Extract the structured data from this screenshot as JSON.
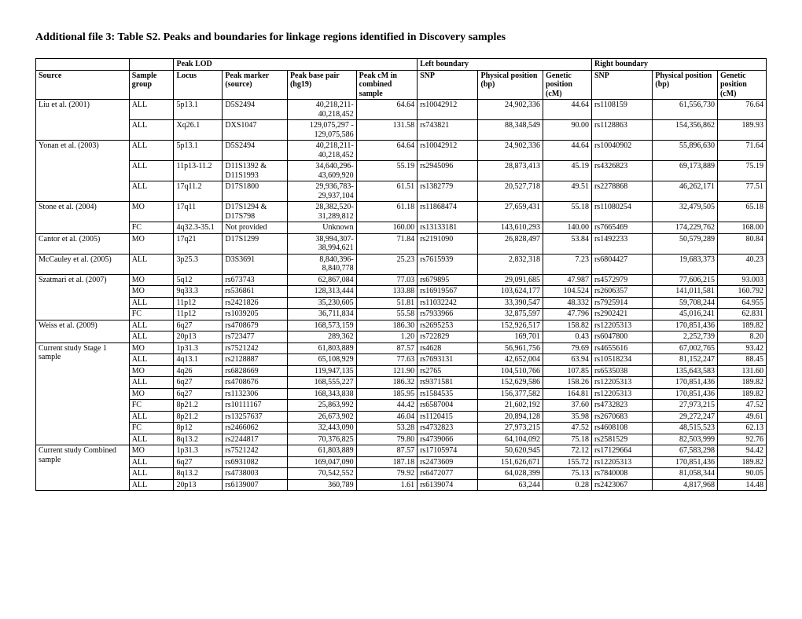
{
  "title": "Additional file 3: Table S2. Peaks and boundaries for linkage regions identified in Discovery samples",
  "group_headers": {
    "peak_lod": "Peak LOD",
    "left": "Left boundary",
    "right": "Right boundary"
  },
  "headers": {
    "source": "Source",
    "sample": "Sample group",
    "locus": "Locus",
    "marker": "Peak marker (source)",
    "basepair": "Peak base pair (hg19)",
    "cm": "Peak cM in combined sample",
    "l_snp": "SNP",
    "l_phys": "Physical position (bp)",
    "l_gen": "Genetic position (cM)",
    "r_snp": "SNP",
    "r_phys": "Physical position (bp)",
    "r_gen": "Genetic position (cM)"
  },
  "rows": [
    {
      "source": "Liu et al. (2001)",
      "sample": "ALL",
      "locus": "5p13.1",
      "marker": "D5S2494",
      "basepair": "40,218,211-40,218,452",
      "cm": "64.64",
      "l_snp": "rs10042912",
      "l_phys": "24,902,336",
      "l_gen": "44.64",
      "r_snp": "rs1108159",
      "r_phys": "61,556,730",
      "r_gen": "76.64"
    },
    {
      "source": "",
      "sample": "ALL",
      "locus": "Xq26.1",
      "marker": "DXS1047",
      "basepair": "129,075,297 - 129,075,586",
      "cm": "131.58",
      "l_snp": "rs743821",
      "l_phys": "88,348,549",
      "l_gen": "90.00",
      "r_snp": "rs1128863",
      "r_phys": "154,356,862",
      "r_gen": "189.93"
    },
    {
      "source": "Yonan et al. (2003)",
      "sample": "ALL",
      "locus": "5p13.1",
      "marker": "D5S2494",
      "basepair": "40,218,211-40,218,452",
      "cm": "64.64",
      "l_snp": "rs10042912",
      "l_phys": "24,902,336",
      "l_gen": "44.64",
      "r_snp": "rs10040902",
      "r_phys": "55,896,630",
      "r_gen": "71.64"
    },
    {
      "source": "",
      "sample": "ALL",
      "locus": "11p13-11.2",
      "marker": "D11S1392 & D11S1993",
      "basepair": "34,640,296-43,609,920",
      "cm": "55.19",
      "l_snp": "rs2945096",
      "l_phys": "28,873,413",
      "l_gen": "45.19",
      "r_snp": "rs4326823",
      "r_phys": "69,173,889",
      "r_gen": "75.19"
    },
    {
      "source": "",
      "sample": "ALL",
      "locus": "17q11.2",
      "marker": "D17S1800",
      "basepair": "29,936,783-29,937,104",
      "cm": "61.51",
      "l_snp": "rs1382779",
      "l_phys": "20,527,718",
      "l_gen": "49.51",
      "r_snp": "rs2278868",
      "r_phys": "46,262,171",
      "r_gen": "77.51"
    },
    {
      "source": "Stone et al. (2004)",
      "sample": "MO",
      "locus": "17q11",
      "marker": "D17S1294 & D17S798",
      "basepair": "28,382,520-31,289,812",
      "cm": "61.18",
      "l_snp": "rs11868474",
      "l_phys": "27,659,431",
      "l_gen": "55.18",
      "r_snp": "rs11080254",
      "r_phys": "32,479,505",
      "r_gen": "65.18"
    },
    {
      "source": "",
      "sample": "FC",
      "locus": "4q32.3-35.1",
      "marker": "Not provided",
      "basepair": "Unknown",
      "cm": "160.00",
      "l_snp": "rs13133181",
      "l_phys": "143,610,293",
      "l_gen": "140.00",
      "r_snp": "rs7665469",
      "r_phys": "174,229,762",
      "r_gen": "168.00"
    },
    {
      "source": "Cantor et al. (2005)",
      "sample": "MO",
      "locus": "17q21",
      "marker": "D17S1299",
      "basepair": "38,994,307-38,994,621",
      "cm": "71.84",
      "l_snp": "rs2191090",
      "l_phys": "26,828,497",
      "l_gen": "53.84",
      "r_snp": "rs1492233",
      "r_phys": "50,579,289",
      "r_gen": "80.84"
    },
    {
      "source": "McCauley et al. (2005)",
      "sample": "ALL",
      "locus": "3p25.3",
      "marker": "D3S3691",
      "basepair": "8,840,396-8,840,778",
      "cm": "25.23",
      "l_snp": "rs7615939",
      "l_phys": "2,832,318",
      "l_gen": "7.23",
      "r_snp": "rs6804427",
      "r_phys": "19,683,373",
      "r_gen": "40.23"
    },
    {
      "source": "Szatmari et al. (2007)",
      "sample": "MO",
      "locus": "5q12",
      "marker": "rs673743",
      "basepair": "62,867,084",
      "cm": "77.03",
      "l_snp": "rs679895",
      "l_phys": "29,091,685",
      "l_gen": "47.987",
      "r_snp": "rs4572979",
      "r_phys": "77,606,215",
      "r_gen": "93.003"
    },
    {
      "source": "",
      "sample": "MO",
      "locus": "9q33.3",
      "marker": "rs536861",
      "basepair": "128,313,444",
      "cm": "133.88",
      "l_snp": "rs16919567",
      "l_phys": "103,624,177",
      "l_gen": "104.524",
      "r_snp": "rs2606357",
      "r_phys": "141,011,581",
      "r_gen": "160.792"
    },
    {
      "source": "",
      "sample": "ALL",
      "locus": "11p12",
      "marker": "rs2421826",
      "basepair": "35,230,605",
      "cm": "51.81",
      "l_snp": "rs11032242",
      "l_phys": "33,390,547",
      "l_gen": "48.332",
      "r_snp": "rs7925914",
      "r_phys": "59,708,244",
      "r_gen": "64.955"
    },
    {
      "source": "",
      "sample": "FC",
      "locus": "11p12",
      "marker": "rs1039205",
      "basepair": "36,711,834",
      "cm": "55.58",
      "l_snp": "rs7933966",
      "l_phys": "32,875,597",
      "l_gen": "47.796",
      "r_snp": "rs2902421",
      "r_phys": "45,016,241",
      "r_gen": "62.831"
    },
    {
      "source": "Weiss et al. (2009)",
      "sample": "ALL",
      "locus": "6q27",
      "marker": "rs4708679",
      "basepair": "168,573,159",
      "cm": "186.30",
      "l_snp": "rs2695253",
      "l_phys": "152,926,517",
      "l_gen": "158.82",
      "r_snp": "rs12205313",
      "r_phys": "170,851,436",
      "r_gen": "189.82"
    },
    {
      "source": "",
      "sample": "ALL",
      "locus": "20p13",
      "marker": "rs723477",
      "basepair": "289,362",
      "cm": "1.20",
      "l_snp": "rs722829",
      "l_phys": "169,701",
      "l_gen": "0.43",
      "r_snp": "rs6047800",
      "r_phys": "2,252,739",
      "r_gen": "8.20"
    },
    {
      "source": "Current study Stage 1 sample",
      "sample": "MO",
      "locus": "1p31.3",
      "marker": "rs7521242",
      "basepair": "61,803,889",
      "cm": "87.57",
      "l_snp": "rs4628",
      "l_phys": "56,961,756",
      "l_gen": "79.69",
      "r_snp": "rs4655616",
      "r_phys": "67,002,765",
      "r_gen": "93.42"
    },
    {
      "source": "",
      "sample": "ALL",
      "locus": "4q13.1",
      "marker": "rs2128887",
      "basepair": "65,108,929",
      "cm": "77.63",
      "l_snp": "rs7693131",
      "l_phys": "42,652,004",
      "l_gen": "63.94",
      "r_snp": "rs10518234",
      "r_phys": "81,152,247",
      "r_gen": "88.45"
    },
    {
      "source": "",
      "sample": "MO",
      "locus": "4q26",
      "marker": "rs6828669",
      "basepair": "119,947,135",
      "cm": "121.90",
      "l_snp": "rs2765",
      "l_phys": "104,510,766",
      "l_gen": "107.85",
      "r_snp": "rs6535038",
      "r_phys": "135,643,583",
      "r_gen": "131.60"
    },
    {
      "source": "",
      "sample": "ALL",
      "locus": "6q27",
      "marker": "rs4708676",
      "basepair": "168,555,227",
      "cm": "186.32",
      "l_snp": "rs9371581",
      "l_phys": "152,629,586",
      "l_gen": "158.26",
      "r_snp": "rs12205313",
      "r_phys": "170,851,436",
      "r_gen": "189.82"
    },
    {
      "source": "",
      "sample": "MO",
      "locus": "6q27",
      "marker": "rs1132306",
      "basepair": "168,343,838",
      "cm": "185.95",
      "l_snp": "rs1584535",
      "l_phys": "156,377,582",
      "l_gen": "164.81",
      "r_snp": "rs12205313",
      "r_phys": "170,851,436",
      "r_gen": "189.82"
    },
    {
      "source": "",
      "sample": "FC",
      "locus": "8p21.2",
      "marker": "rs10111167",
      "basepair": "25,863,992",
      "cm": "44.42",
      "l_snp": "rs6587004",
      "l_phys": "21,602,192",
      "l_gen": "37.60",
      "r_snp": "rs4732823",
      "r_phys": "27,973,215",
      "r_gen": "47.52"
    },
    {
      "source": "",
      "sample": "ALL",
      "locus": "8p21.2",
      "marker": "rs13257637",
      "basepair": "26,673,902",
      "cm": "46.04",
      "l_snp": "rs1120415",
      "l_phys": "20,894,128",
      "l_gen": "35.98",
      "r_snp": "rs2670683",
      "r_phys": "29,272,247",
      "r_gen": "49.61"
    },
    {
      "source": "",
      "sample": "FC",
      "locus": "8p12",
      "marker": "rs2466062",
      "basepair": "32,443,090",
      "cm": "53.28",
      "l_snp": "rs4732823",
      "l_phys": "27,973,215",
      "l_gen": "47.52",
      "r_snp": "rs4608108",
      "r_phys": "48,515,523",
      "r_gen": "62.13"
    },
    {
      "source": "",
      "sample": "ALL",
      "locus": "8q13.2",
      "marker": "rs2244817",
      "basepair": "70,376,825",
      "cm": "79.80",
      "l_snp": "rs4739066",
      "l_phys": "64,104,092",
      "l_gen": "75.18",
      "r_snp": "rs2581529",
      "r_phys": "82,503,999",
      "r_gen": "92.76"
    },
    {
      "source": "Current study Combined sample",
      "sample": "MO",
      "locus": "1p31.3",
      "marker": "rs7521242",
      "basepair": "61,803,889",
      "cm": "87.57",
      "l_snp": "rs17105974",
      "l_phys": "50,620,945",
      "l_gen": "72.12",
      "r_snp": "rs17129664",
      "r_phys": "67,583,298",
      "r_gen": "94.42"
    },
    {
      "source": "",
      "sample": "ALL",
      "locus": "6q27",
      "marker": "rs6931082",
      "basepair": "169,047,090",
      "cm": "187.18",
      "l_snp": "rs2473609",
      "l_phys": "151,626,671",
      "l_gen": "155.72",
      "r_snp": "rs12205313",
      "r_phys": "170,851,436",
      "r_gen": "189.82"
    },
    {
      "source": "",
      "sample": "ALL",
      "locus": "8q13.2",
      "marker": "rs4738003",
      "basepair": "70,542,552",
      "cm": "79.92",
      "l_snp": "rs6472077",
      "l_phys": "64,028,399",
      "l_gen": "75.13",
      "r_snp": "rs7840008",
      "r_phys": "81,058,344",
      "r_gen": "90.05"
    },
    {
      "source": "",
      "sample": "ALL",
      "locus": "20p13",
      "marker": "rs6139007",
      "basepair": "360,789",
      "cm": "1.61",
      "l_snp": "rs6139074",
      "l_phys": "63,244",
      "l_gen": "0.28",
      "r_snp": "rs2423067",
      "r_phys": "4,817,968",
      "r_gen": "14.48"
    }
  ],
  "source_spans": {
    "0": 2,
    "2": 3,
    "5": 2,
    "7": 1,
    "8": 1,
    "9": 4,
    "13": 2,
    "15": 9,
    "24": 4
  }
}
